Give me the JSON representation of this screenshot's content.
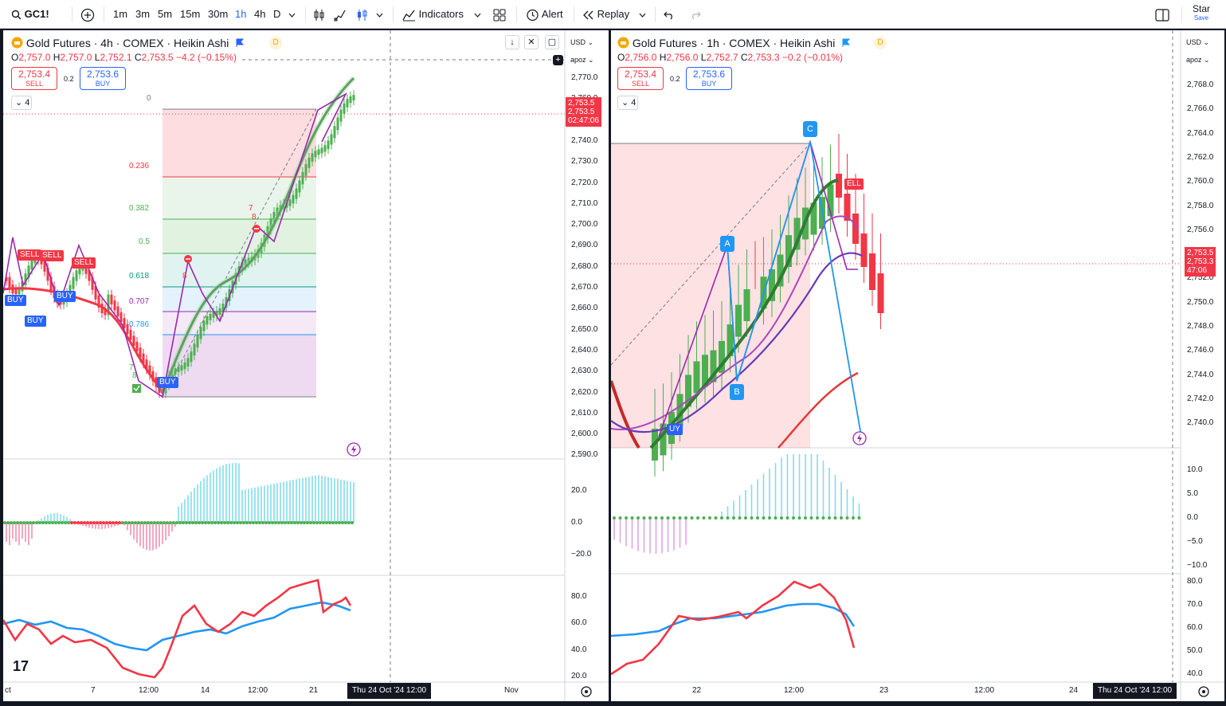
{
  "toolbar": {
    "symbol": "GC1!",
    "intervals": [
      "1m",
      "3m",
      "5m",
      "15m",
      "30m",
      "1h",
      "4h",
      "D"
    ],
    "active_interval": "1h",
    "indicators_label": "Indicators",
    "alert_label": "Alert",
    "replay_label": "Replay",
    "star_label": "Star",
    "save_label": "Save"
  },
  "left": {
    "title": "Gold Futures · 4h · COMEX · Heikin Ashi",
    "d_badge": "D",
    "ohlc": {
      "o_label": "O",
      "o": "2,757.0",
      "h_label": "H",
      "h": "2,757.0",
      "l_label": "L",
      "l": "2,752.1",
      "c_label": "C",
      "c": "2,753.5",
      "chg": "−4.2 (−0.15%)"
    },
    "sell_price": "2,753.4",
    "sell_label": "SELL",
    "spread": "0.2",
    "buy_price": "2,753.6",
    "buy_label": "BUY",
    "collapse_count": "4",
    "currency": "USD",
    "scale_mode": "apoz",
    "price_ticks": [
      "2,770.0",
      "2,760.0",
      "2,750.0",
      "2,740.0",
      "2,730.0",
      "2,720.0",
      "2,710.0",
      "2,700.0",
      "2,690.0",
      "2,680.0",
      "2,670.0",
      "2,660.0",
      "2,650.0",
      "2,640.0",
      "2,630.0",
      "2,620.0",
      "2,610.0",
      "2,600.0",
      "2,590.0"
    ],
    "price_tag": [
      "2,753.5",
      "2,753.5",
      "02:47:06"
    ],
    "fib_levels": [
      "0",
      "0.236",
      "0.382",
      "0.5",
      "0.618",
      "0.707",
      "0.786"
    ],
    "osc_ticks": [
      "20.0",
      "0.0",
      "−20.0"
    ],
    "rsi_ticks": [
      "80.0",
      "60.0",
      "40.0",
      "20.0"
    ],
    "x_labels": [
      "ct",
      "7",
      "12:00",
      "14",
      "12:00",
      "21",
      "Nov"
    ],
    "date_tag": "Thu 24 Oct '24   12:00",
    "signals": {
      "sell": "SELL",
      "buy": "BUY"
    },
    "marks": [
      "7",
      "8",
      "8",
      "7",
      "8"
    ],
    "logo": "17"
  },
  "right": {
    "title": "Gold Futures · 1h · COMEX · Heikin Ashi",
    "d_badge": "D",
    "ohlc": {
      "o_label": "O",
      "o": "2,756.0",
      "h_label": "H",
      "h": "2,756.0",
      "l_label": "L",
      "l": "2,752.7",
      "c_label": "C",
      "c": "2,753.3",
      "chg": "−0.2 (−0.01%)"
    },
    "sell_price": "2,753.4",
    "sell_label": "SELL",
    "spread": "0.2",
    "buy_price": "2,753.6",
    "buy_label": "BUY",
    "collapse_count": "4",
    "currency": "USD",
    "scale_mode": "apoz",
    "price_ticks": [
      "2,768.0",
      "2,766.0",
      "2,764.0",
      "2,762.0",
      "2,760.0",
      "2,758.0",
      "2,756.0",
      "2,754.0",
      "2,752.0",
      "2,750.0",
      "2,748.0",
      "2,746.0",
      "2,744.0",
      "2,742.0",
      "2,740.0"
    ],
    "price_tag": [
      "2,753.5",
      "2,753.3",
      "47:06"
    ],
    "osc_ticks": [
      "10.0",
      "5.0",
      "0.0",
      "−5.0",
      "−10.0"
    ],
    "rsi_ticks": [
      "80.0",
      "70.0",
      "60.0",
      "50.0",
      "40.0"
    ],
    "x_labels": [
      "22",
      "12:00",
      "23",
      "12:00",
      "24"
    ],
    "date_tag": "Thu 24 Oct '24   12:00",
    "wave_labels": [
      "A",
      "B",
      "C"
    ],
    "signals": {
      "sell_partial": "ELL",
      "buy_partial": "UY"
    }
  },
  "colors": {
    "up": "#4caf50",
    "down": "#f23645",
    "accent": "#2962ff",
    "fib_red": "#f23645",
    "fib_green": "#4caf50",
    "fib_teal": "#089981",
    "fib_purple": "#9c27b0",
    "fib_blue": "#2196f3"
  }
}
